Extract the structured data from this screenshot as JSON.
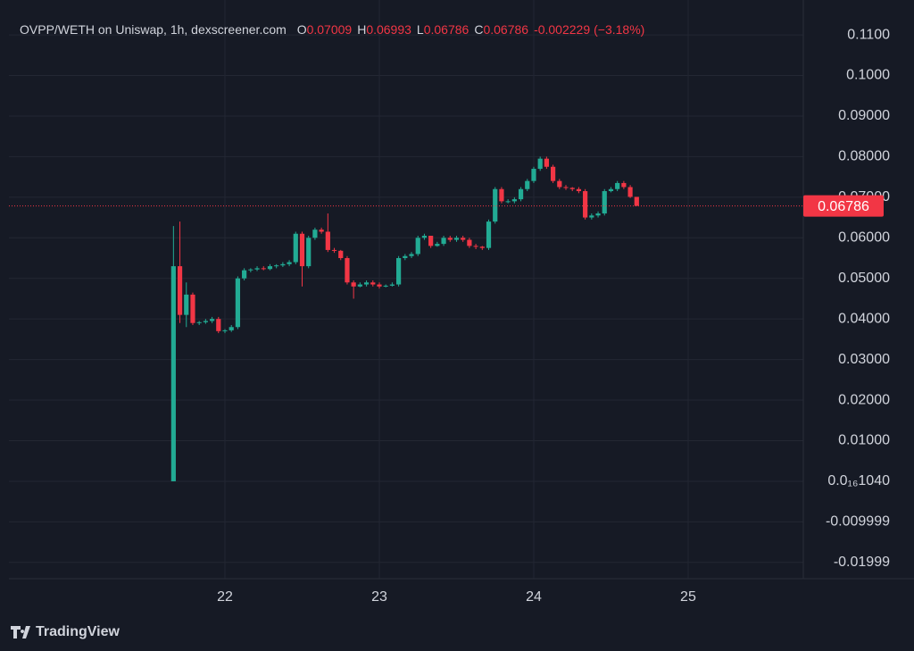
{
  "chart_data": {
    "type": "candlestick",
    "title": "OVPP/WETH on Uniswap, 1h, dexscreener.com",
    "ohlc_legend": [
      {
        "label": "O",
        "value": "0.07009"
      },
      {
        "label": "H",
        "value": "0.06993"
      },
      {
        "label": "L",
        "value": "0.06786"
      },
      {
        "label": "C",
        "value": "0.06786"
      }
    ],
    "change": "-0.002229",
    "change_percent": "(−3.18%)",
    "x": [
      21.6667,
      21.7083,
      21.75,
      21.7917,
      21.8333,
      21.875,
      21.9167,
      21.9583,
      22,
      22.0417,
      22.0833,
      22.125,
      22.1667,
      22.2083,
      22.25,
      22.2917,
      22.3333,
      22.375,
      22.4167,
      22.4583,
      22.5,
      22.5417,
      22.5833,
      22.625,
      22.6667,
      22.7083,
      22.75,
      22.7917,
      22.8333,
      22.875,
      22.9167,
      22.9583,
      23,
      23.0417,
      23.0833,
      23.125,
      23.1667,
      23.2083,
      23.25,
      23.2917,
      23.3333,
      23.375,
      23.4167,
      23.4583,
      23.5,
      23.5417,
      23.5833,
      23.625,
      23.6667,
      23.7083,
      23.75,
      23.7917,
      23.8333,
      23.875,
      23.9167,
      23.9583,
      24,
      24.0417,
      24.0833,
      24.125,
      24.1667,
      24.2083,
      24.25,
      24.2917,
      24.3333,
      24.375,
      24.4167,
      24.4583,
      24.5,
      24.5417,
      24.5833,
      24.625,
      24.6667
    ],
    "open": [
      0,
      0.053,
      0.041,
      0.046,
      0.039,
      0.0392,
      0.0395,
      0.04,
      0.037,
      0.0372,
      0.038,
      0.05,
      0.052,
      0.0522,
      0.0525,
      0.0523,
      0.053,
      0.0532,
      0.0535,
      0.054,
      0.061,
      0.053,
      0.06,
      0.062,
      0.0615,
      0.057,
      0.0568,
      0.055,
      0.049,
      0.048,
      0.0485,
      0.049,
      0.0485,
      0.048,
      0.0482,
      0.0485,
      0.055,
      0.0555,
      0.056,
      0.06,
      0.0605,
      0.058,
      0.0585,
      0.06,
      0.0595,
      0.06,
      0.0595,
      0.058,
      0.0578,
      0.0575,
      0.064,
      0.072,
      0.069,
      0.069,
      0.0695,
      0.072,
      0.074,
      0.077,
      0.0795,
      0.0775,
      0.074,
      0.0725,
      0.0723,
      0.072,
      0.0715,
      0.065,
      0.0655,
      0.066,
      0.0715,
      0.072,
      0.0735,
      0.0725,
      0.07009
    ],
    "high": [
      0.0629,
      0.064,
      0.049,
      0.0465,
      0.0395,
      0.04,
      0.0405,
      0.0405,
      0.0375,
      0.0385,
      0.0505,
      0.0525,
      0.0525,
      0.053,
      0.053,
      0.0535,
      0.0535,
      0.054,
      0.0545,
      0.0615,
      0.0615,
      0.0605,
      0.0625,
      0.0625,
      0.066,
      0.0575,
      0.057,
      0.0555,
      0.0495,
      0.049,
      0.0495,
      0.0495,
      0.049,
      0.0485,
      0.049,
      0.0555,
      0.056,
      0.0565,
      0.0605,
      0.061,
      0.0605,
      0.059,
      0.0605,
      0.0605,
      0.0605,
      0.0605,
      0.06,
      0.0585,
      0.058,
      0.0645,
      0.0725,
      0.0725,
      0.0695,
      0.07,
      0.0725,
      0.0745,
      0.0775,
      0.08,
      0.08,
      0.078,
      0.0745,
      0.073,
      0.0725,
      0.0725,
      0.072,
      0.066,
      0.0665,
      0.072,
      0.0725,
      0.074,
      0.074,
      0.073,
      0.06993
    ],
    "low": [
      0,
      0.039,
      0.038,
      0.0385,
      0.0385,
      0.0388,
      0.039,
      0.0365,
      0.0365,
      0.0368,
      0.0375,
      0.0495,
      0.0515,
      0.0518,
      0.052,
      0.052,
      0.0525,
      0.0528,
      0.053,
      0.0535,
      0.048,
      0.0525,
      0.0595,
      0.061,
      0.0565,
      0.0563,
      0.0545,
      0.0485,
      0.045,
      0.0478,
      0.048,
      0.048,
      0.0475,
      0.0478,
      0.048,
      0.048,
      0.0545,
      0.055,
      0.0555,
      0.0595,
      0.0575,
      0.0578,
      0.058,
      0.059,
      0.059,
      0.059,
      0.0575,
      0.0572,
      0.057,
      0.057,
      0.0635,
      0.0685,
      0.0685,
      0.0685,
      0.069,
      0.0715,
      0.0735,
      0.0765,
      0.077,
      0.0735,
      0.072,
      0.0718,
      0.0715,
      0.071,
      0.0645,
      0.0645,
      0.065,
      0.0655,
      0.0712,
      0.0715,
      0.072,
      0.0698,
      0.06786
    ],
    "close": [
      0.053,
      0.041,
      0.046,
      0.039,
      0.0392,
      0.0395,
      0.04,
      0.037,
      0.0372,
      0.038,
      0.05,
      0.052,
      0.0522,
      0.0525,
      0.0523,
      0.053,
      0.0532,
      0.0535,
      0.054,
      0.061,
      0.053,
      0.06,
      0.062,
      0.0615,
      0.057,
      0.0568,
      0.055,
      0.049,
      0.048,
      0.0485,
      0.049,
      0.0485,
      0.048,
      0.0482,
      0.0485,
      0.055,
      0.0555,
      0.056,
      0.06,
      0.0605,
      0.058,
      0.0585,
      0.06,
      0.0595,
      0.06,
      0.0595,
      0.058,
      0.0578,
      0.0575,
      0.064,
      0.072,
      0.069,
      0.069,
      0.0695,
      0.072,
      0.074,
      0.077,
      0.0795,
      0.0775,
      0.074,
      0.0725,
      0.0723,
      0.072,
      0.0715,
      0.065,
      0.0655,
      0.066,
      0.0715,
      0.072,
      0.0735,
      0.0725,
      0.07009,
      0.06786
    ],
    "up_color": "#22ab94",
    "down_color": "#f23645",
    "xlim": [
      20.601,
      25.746
    ],
    "xticks": [
      22,
      23,
      24,
      25
    ],
    "ylim": [
      -0.024,
      0.1186
    ],
    "yticks": [
      {
        "value": 0.11,
        "label": "0.1100"
      },
      {
        "value": 0.1,
        "label": "0.1000"
      },
      {
        "value": 0.09,
        "label": "0.09000"
      },
      {
        "value": 0.08,
        "label": "0.08000"
      },
      {
        "value": 0.07,
        "label": "0.07000"
      },
      {
        "value": 0.06,
        "label": "0.06000"
      },
      {
        "value": 0.05,
        "label": "0.05000"
      },
      {
        "value": 0.04,
        "label": "0.04000"
      },
      {
        "value": 0.03,
        "label": "0.03000"
      },
      {
        "value": 0.02,
        "label": "0.02000"
      },
      {
        "value": 0.01,
        "label": "0.01000"
      },
      {
        "value": 1.04e-17,
        "label": "0.0₁₆1040"
      },
      {
        "value": -0.009999,
        "label": "-0.009999"
      },
      {
        "value": -0.01999,
        "label": "-0.01999"
      }
    ],
    "last_price": {
      "value": 0.06786,
      "label": "0.06786"
    },
    "grid": true,
    "branding": "TradingView"
  }
}
